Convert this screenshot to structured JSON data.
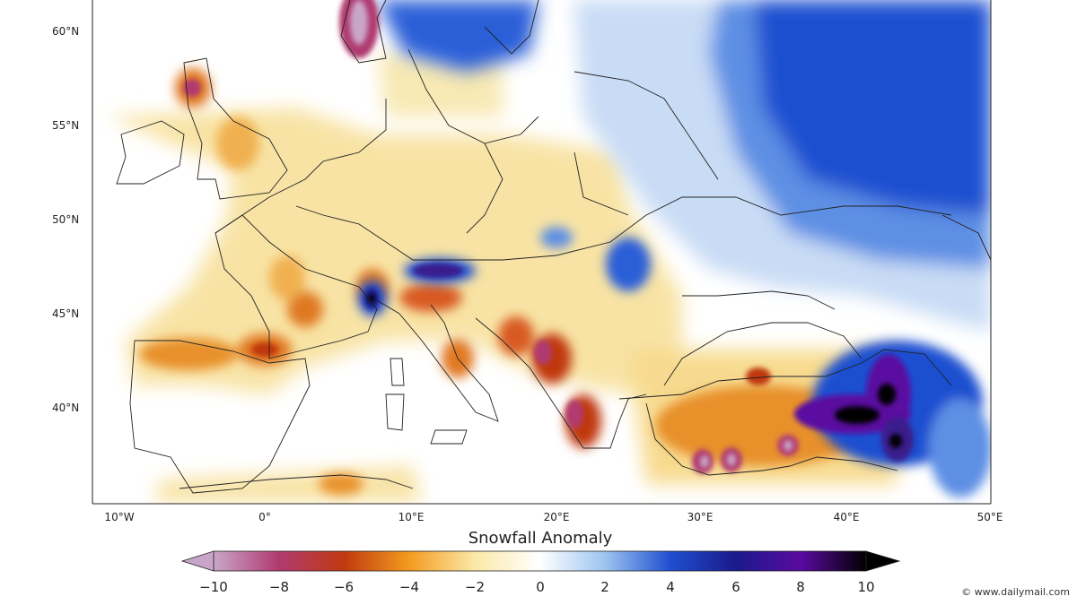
{
  "map": {
    "latitude_labels": [
      "60°N",
      "55°N",
      "50°N",
      "45°N",
      "40°N"
    ],
    "longitude_labels": [
      "10°W",
      "0°",
      "10°E",
      "20°E",
      "30°E",
      "40°E",
      "50°E"
    ]
  },
  "colorbar": {
    "title": "Snowfall Anomaly",
    "ticks": [
      "−10",
      "−8",
      "−6",
      "−4",
      "−2",
      "0",
      "2",
      "4",
      "6",
      "8",
      "10"
    ],
    "colors": [
      "#c9a6c9",
      "#b03a70",
      "#c0390f",
      "#f39c20",
      "#fbe8a6",
      "#ffffff",
      "#9cc4f0",
      "#1f4fd0",
      "#1a1a8c",
      "#5a0aa0",
      "#000000"
    ]
  },
  "watermark": {
    "icon": "copyright-icon",
    "text": "www.dailymail.com"
  }
}
